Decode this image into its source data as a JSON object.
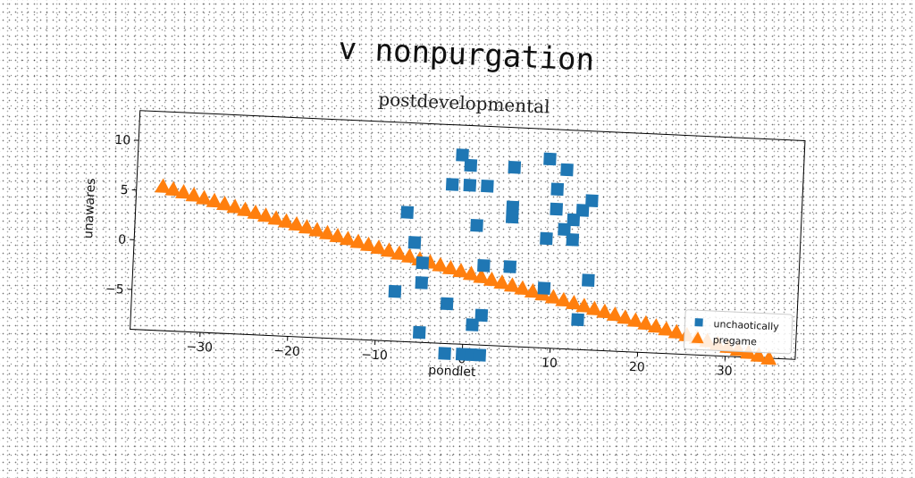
{
  "chart_data": {
    "type": "scatter",
    "title": "v nonpurgation",
    "subtitle": "postdevelopmental",
    "xlabel": "pondlet",
    "ylabel": "unawares",
    "xlim": [
      -38,
      38
    ],
    "ylim": [
      -9,
      13
    ],
    "xticks": [
      -30,
      -20,
      -10,
      0,
      10,
      20,
      30
    ],
    "xtick_labels": [
      "−30",
      "−20",
      "−10",
      "0",
      "10",
      "20",
      "30"
    ],
    "yticks": [
      -5,
      0,
      5,
      10
    ],
    "ytick_labels": [
      "−5",
      "0",
      "5",
      "10"
    ],
    "grid": false,
    "legend_position": "bottom-right",
    "series": [
      {
        "name": "unchaotically",
        "marker": "square",
        "color": "#1f77b4",
        "points": [
          [
            -1,
            10
          ],
          [
            0,
            9
          ],
          [
            -2,
            7
          ],
          [
            0,
            7
          ],
          [
            2,
            7
          ],
          [
            5,
            9
          ],
          [
            9,
            10
          ],
          [
            11,
            9
          ],
          [
            10,
            7
          ],
          [
            5,
            5
          ],
          [
            5,
            4
          ],
          [
            10,
            5
          ],
          [
            12,
            4
          ],
          [
            13,
            5
          ],
          [
            14,
            6
          ],
          [
            -7,
            4
          ],
          [
            1,
            3
          ],
          [
            11,
            3
          ],
          [
            9,
            2
          ],
          [
            12,
            2
          ],
          [
            -6,
            1
          ],
          [
            -5,
            -1
          ],
          [
            2,
            -1
          ],
          [
            5,
            -1
          ],
          [
            9,
            -3
          ],
          [
            14,
            -2
          ],
          [
            -8,
            -4
          ],
          [
            -5,
            -3
          ],
          [
            -2,
            -5
          ],
          [
            1,
            -7
          ],
          [
            2,
            -6
          ],
          [
            13,
            -6
          ],
          [
            -5,
            -8
          ],
          [
            -2,
            -10
          ],
          [
            0,
            -10
          ],
          [
            1,
            -10
          ],
          [
            2,
            -10
          ]
        ]
      },
      {
        "name": "pregame",
        "marker": "triangle",
        "color": "#ff7f0e",
        "x_start": -35,
        "x_end": 35,
        "count": 60,
        "y_start": 5.5,
        "y_end": -9.0
      }
    ]
  }
}
